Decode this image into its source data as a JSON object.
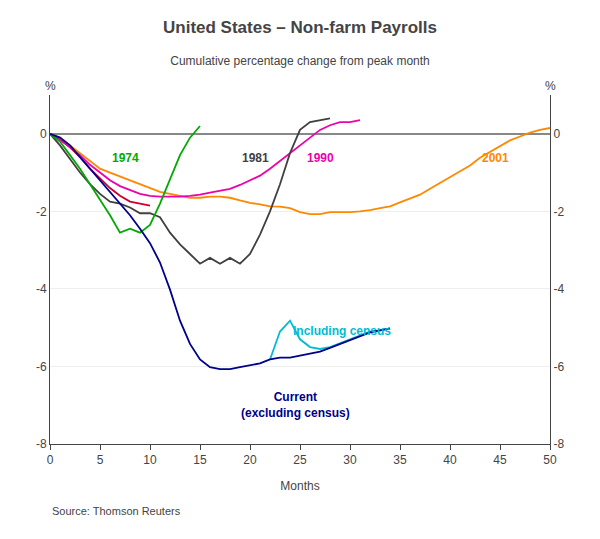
{
  "chart_data": {
    "type": "line",
    "title": "United States – Non-farm Payrolls",
    "subtitle": "Cumulative percentage change from peak month",
    "xlabel": "Months",
    "ylabel": "%",
    "source": "Source: Thomson Reuters",
    "xlim": [
      0,
      50
    ],
    "xticks": [
      0,
      5,
      10,
      15,
      20,
      25,
      30,
      35,
      40,
      45,
      50
    ],
    "ylim": [
      -8,
      1
    ],
    "yticks": [
      -8,
      -6,
      -4,
      -2,
      0
    ],
    "y2lim": [
      -8,
      1
    ],
    "y2ticks": [
      -8,
      -6,
      -4,
      -2,
      0
    ],
    "grid": true,
    "series": [
      {
        "color": "#cc0033",
        "x": [
          0,
          1,
          2,
          3,
          4,
          5,
          6,
          7,
          8,
          9,
          10
        ],
        "values": [
          0,
          -0.15,
          -0.35,
          -0.6,
          -0.9,
          -1.15,
          -1.4,
          -1.6,
          -1.75,
          -1.8,
          -1.85
        ]
      },
      {
        "color": "#ff8800",
        "x": [
          0,
          1,
          2,
          3,
          4,
          5,
          6,
          7,
          8,
          9,
          10,
          11,
          12,
          13,
          14,
          15,
          16,
          17,
          18,
          19,
          20,
          21,
          22,
          23,
          24,
          25,
          26,
          27,
          28,
          29,
          30,
          31,
          32,
          33,
          34,
          35,
          36,
          37,
          38,
          39,
          40,
          41,
          42,
          43,
          44,
          45,
          46,
          47,
          48,
          49,
          50
        ],
        "values": [
          0,
          -0.1,
          -0.3,
          -0.5,
          -0.7,
          -0.9,
          -1.0,
          -1.1,
          -1.2,
          -1.3,
          -1.4,
          -1.5,
          -1.55,
          -1.6,
          -1.65,
          -1.65,
          -1.62,
          -1.62,
          -1.65,
          -1.72,
          -1.78,
          -1.82,
          -1.87,
          -1.88,
          -1.92,
          -2.02,
          -2.07,
          -2.07,
          -2.02,
          -2.02,
          -2.02,
          -2.0,
          -1.97,
          -1.92,
          -1.87,
          -1.77,
          -1.67,
          -1.57,
          -1.42,
          -1.27,
          -1.12,
          -0.97,
          -0.82,
          -0.62,
          -0.47,
          -0.32,
          -0.17,
          -0.07,
          0.03,
          0.1,
          0.15
        ]
      },
      {
        "color": "#ee00aa",
        "x": [
          0,
          1,
          2,
          3,
          4,
          5,
          6,
          7,
          8,
          9,
          10,
          11,
          12,
          13,
          14,
          15,
          16,
          17,
          18,
          19,
          20,
          21,
          22,
          23,
          24,
          25,
          26,
          27,
          28,
          29,
          30,
          31
        ],
        "values": [
          0,
          -0.15,
          -0.35,
          -0.55,
          -0.8,
          -1.0,
          -1.2,
          -1.35,
          -1.45,
          -1.55,
          -1.6,
          -1.62,
          -1.62,
          -1.62,
          -1.6,
          -1.57,
          -1.52,
          -1.47,
          -1.42,
          -1.32,
          -1.2,
          -1.08,
          -0.9,
          -0.7,
          -0.5,
          -0.28,
          -0.08,
          0.1,
          0.22,
          0.3,
          0.3,
          0.35
        ]
      },
      {
        "color": "#404040",
        "x": [
          0,
          1,
          2,
          3,
          4,
          5,
          6,
          7,
          8,
          9,
          10,
          11,
          12,
          13,
          14,
          15,
          16,
          17,
          18,
          19,
          20,
          21,
          22,
          23,
          24,
          25,
          26,
          27,
          28
        ],
        "values": [
          0,
          -0.3,
          -0.65,
          -1.0,
          -1.3,
          -1.55,
          -1.75,
          -1.8,
          -1.9,
          -2.05,
          -2.05,
          -2.15,
          -2.55,
          -2.85,
          -3.1,
          -3.35,
          -3.2,
          -3.35,
          -3.2,
          -3.35,
          -3.1,
          -2.6,
          -2.0,
          -1.3,
          -0.5,
          0.1,
          0.3,
          0.35,
          0.4
        ]
      },
      {
        "color": "#00aa00",
        "x": [
          0,
          1,
          2,
          3,
          4,
          5,
          6,
          7,
          8,
          9,
          10,
          11,
          12,
          13,
          14,
          15
        ],
        "values": [
          0,
          -0.2,
          -0.55,
          -0.9,
          -1.3,
          -1.7,
          -2.1,
          -2.55,
          -2.45,
          -2.55,
          -2.35,
          -1.8,
          -1.15,
          -0.55,
          -0.1,
          0.2
        ]
      },
      {
        "color": "#00bcd4",
        "x": [
          22,
          23,
          24,
          25,
          26,
          27,
          28,
          29,
          30,
          31,
          32,
          33,
          34
        ],
        "values": [
          -5.82,
          -5.1,
          -4.82,
          -5.3,
          -5.5,
          -5.55,
          -5.5,
          -5.4,
          -5.3,
          -5.2,
          -5.1,
          -5.07,
          -5.02
        ]
      },
      {
        "color": "#00008b",
        "x": [
          0,
          1,
          2,
          3,
          4,
          5,
          6,
          7,
          8,
          9,
          10,
          11,
          12,
          13,
          14,
          15,
          16,
          17,
          18,
          19,
          20,
          21,
          22,
          23,
          24,
          25,
          26,
          27,
          28,
          29,
          30,
          31,
          32,
          33,
          34
        ],
        "values": [
          0,
          -0.1,
          -0.3,
          -0.6,
          -0.9,
          -1.2,
          -1.5,
          -1.8,
          -2.1,
          -2.45,
          -2.82,
          -3.32,
          -4.02,
          -4.82,
          -5.42,
          -5.82,
          -6.02,
          -6.07,
          -6.07,
          -6.02,
          -5.97,
          -5.92,
          -5.82,
          -5.77,
          -5.77,
          -5.72,
          -5.67,
          -5.62,
          -5.52,
          -5.42,
          -5.32,
          -5.22,
          -5.12,
          -5.07,
          -5.02
        ]
      }
    ],
    "annotations": [
      {
        "x": 7.5,
        "y": -0.38,
        "text": "1974",
        "color": "#00aa00"
      },
      {
        "x": 20.5,
        "y": -0.38,
        "text": "1981",
        "color": "#404040"
      },
      {
        "x": 27.0,
        "y": -0.38,
        "text": "1990",
        "color": "#ee00aa"
      },
      {
        "x": 44.5,
        "y": -0.38,
        "text": "2001",
        "color": "#ff8800"
      },
      {
        "x": 29.2,
        "y": -4.85,
        "text": "Including census",
        "color": "#00bcd4"
      },
      {
        "x": 24.5,
        "y": -6.55,
        "text": "Current\n(excluding census)",
        "color": "#00008b"
      }
    ]
  }
}
